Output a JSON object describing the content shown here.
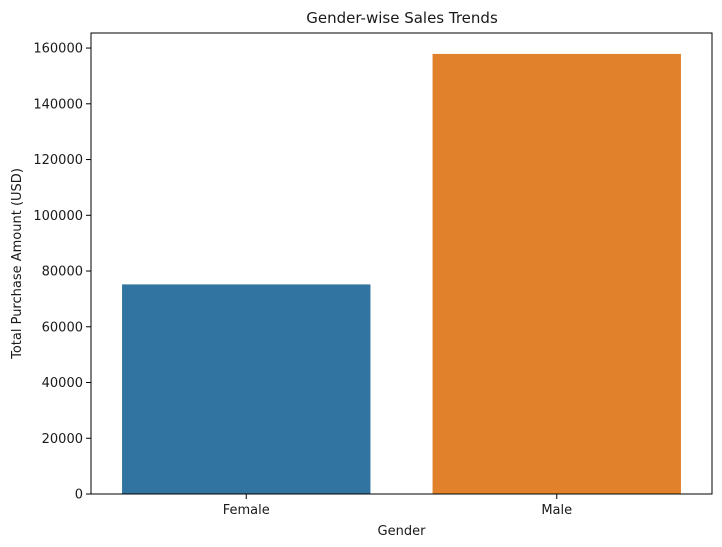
{
  "chart_data": {
    "type": "bar",
    "title": "Gender-wise Sales Trends",
    "xlabel": "Gender",
    "ylabel": "Total Purchase Amount (USD)",
    "categories": [
      "Female",
      "Male"
    ],
    "values": [
      75200,
      157900
    ],
    "ylim": [
      0,
      165400
    ],
    "yticks": [
      0,
      20000,
      40000,
      60000,
      80000,
      100000,
      120000,
      140000,
      160000
    ],
    "colors": [
      "#3274a1",
      "#e1812c"
    ],
    "grid": false,
    "legend": "none"
  }
}
